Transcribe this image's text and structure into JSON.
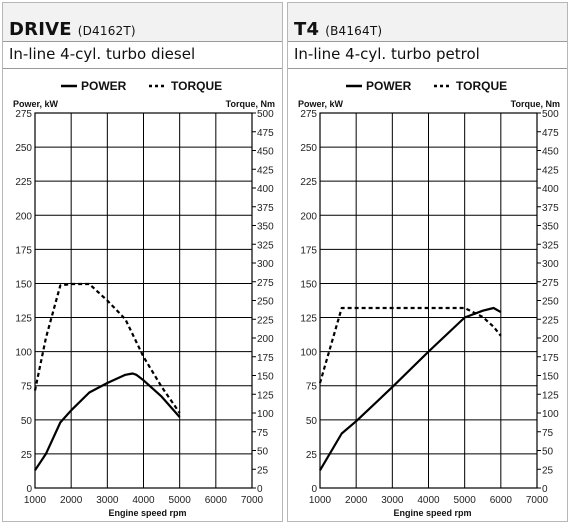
{
  "chart_data": [
    {
      "type": "line",
      "engine_name": "DRIVE",
      "engine_code": "(D4162T)",
      "subtitle": "In-line 4-cyl. turbo diesel",
      "legend": [
        "POWER",
        "TORQUE"
      ],
      "ylabel_left": "Power, kW",
      "ylabel_right": "Torque, Nm",
      "xlabel": "Engine speed rpm",
      "xlim": [
        1000,
        7000
      ],
      "ylim_left": [
        0,
        275
      ],
      "ylim_right": [
        0,
        500
      ],
      "x_ticks": [
        "1000",
        "2000",
        "3000",
        "4000",
        "5000",
        "6000",
        "7000"
      ],
      "y_left_ticks": [
        "0",
        "25",
        "50",
        "75",
        "100",
        "125",
        "150",
        "175",
        "200",
        "225",
        "250",
        "275"
      ],
      "y_right_ticks": [
        "0",
        "25",
        "50",
        "75",
        "100",
        "125",
        "150",
        "175",
        "200",
        "225",
        "250",
        "275",
        "300",
        "325",
        "350",
        "375",
        "400",
        "425",
        "450",
        "475",
        "500"
      ],
      "series": [
        {
          "name": "POWER",
          "axis": "left",
          "style": "solid",
          "x": [
            1000,
            1300,
            1700,
            2000,
            2500,
            3000,
            3500,
            3700,
            3800,
            4000,
            4500,
            5000
          ],
          "y": [
            13,
            25,
            48,
            57,
            70,
            77,
            83,
            84,
            83,
            79,
            67,
            52
          ]
        },
        {
          "name": "TORQUE",
          "axis": "right",
          "style": "dashed",
          "x": [
            1000,
            1300,
            1700,
            2000,
            2500,
            3000,
            3500,
            4000,
            4500,
            5000
          ],
          "y": [
            130,
            200,
            270,
            272,
            272,
            250,
            225,
            175,
            135,
            100
          ]
        }
      ]
    },
    {
      "type": "line",
      "engine_name": "T4",
      "engine_code": "(B4164T)",
      "subtitle": "In-line 4-cyl. turbo petrol",
      "legend": [
        "POWER",
        "TORQUE"
      ],
      "ylabel_left": "Power, kW",
      "ylabel_right": "Torque, Nm",
      "xlabel": "Engine speed rpm",
      "xlim": [
        1000,
        7000
      ],
      "ylim_left": [
        0,
        275
      ],
      "ylim_right": [
        0,
        500
      ],
      "x_ticks": [
        "1000",
        "2000",
        "3000",
        "4000",
        "5000",
        "6000",
        "7000"
      ],
      "y_left_ticks": [
        "0",
        "25",
        "50",
        "75",
        "100",
        "125",
        "150",
        "175",
        "200",
        "225",
        "250",
        "275"
      ],
      "y_right_ticks": [
        "0",
        "25",
        "50",
        "75",
        "100",
        "125",
        "150",
        "175",
        "200",
        "225",
        "250",
        "275",
        "300",
        "325",
        "350",
        "375",
        "400",
        "425",
        "450",
        "475",
        "500"
      ],
      "series": [
        {
          "name": "POWER",
          "axis": "left",
          "style": "solid",
          "x": [
            1000,
            1600,
            2000,
            3000,
            4000,
            5000,
            5500,
            5800,
            6000
          ],
          "y": [
            13,
            40,
            49,
            74,
            100,
            125,
            130,
            132,
            129
          ]
        },
        {
          "name": "TORQUE",
          "axis": "right",
          "style": "dashed",
          "x": [
            1000,
            1600,
            2000,
            3000,
            4000,
            5000,
            5500,
            5800,
            6000
          ],
          "y": [
            140,
            240,
            240,
            240,
            240,
            240,
            228,
            215,
            203
          ]
        }
      ]
    }
  ]
}
